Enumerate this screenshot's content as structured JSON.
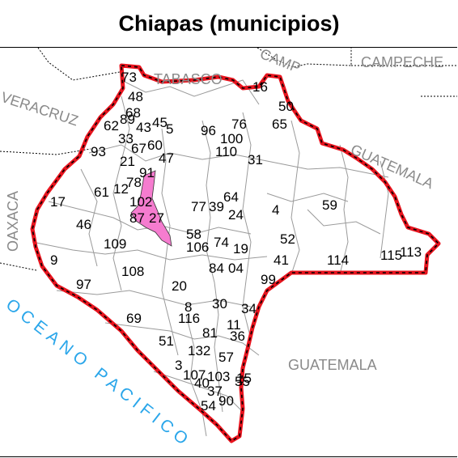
{
  "title": "Chiapas (municipios)",
  "colors": {
    "border": "#e8141e",
    "border_dash": "#000000",
    "internal": "#9a9a9a",
    "neighbor": "#8a8a8a",
    "highlight": "#f57ccf",
    "ocean_text": "#2aa6ea"
  },
  "regions": {
    "tabasco": "TABASCO",
    "campeche": "CAMPECHE",
    "veracruz": "VERACRUZ",
    "oaxaca": "OAXACA",
    "guatemala_ne": "GUATEMALA",
    "guatemala_s": "GUATEMALA",
    "campeche_partial": "CAMP"
  },
  "ocean": "OCEANO PACIFICO",
  "highlighted_municipio": "Tuxtla Gutiérrez (area highlighted in pink)",
  "municipio_labels": [
    "73",
    "48",
    "68",
    "62",
    "89",
    "43",
    "45",
    "5",
    "93",
    "33",
    "67",
    "60",
    "21",
    "47",
    "17",
    "61",
    "12",
    "78",
    "91",
    "102",
    "87",
    "27",
    "46",
    "109",
    "9",
    "108",
    "97",
    "20",
    "69",
    "8",
    "116",
    "51",
    "81",
    "3",
    "132",
    "107",
    "40",
    "103",
    "37",
    "54",
    "90",
    "16",
    "50",
    "76",
    "96",
    "65",
    "100",
    "110",
    "31",
    "59",
    "4",
    "52",
    "41",
    "114",
    "115",
    "113",
    "64",
    "24",
    "39",
    "19",
    "74",
    "106",
    "84",
    "04",
    "99",
    "30",
    "34",
    "11",
    "36",
    "57",
    "55",
    "15",
    "58",
    "77"
  ]
}
